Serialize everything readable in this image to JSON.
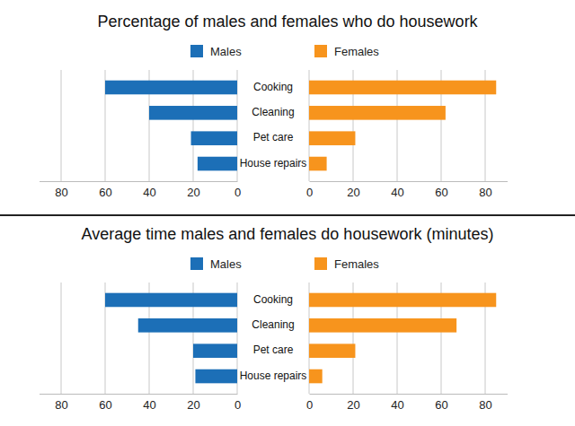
{
  "chart_data": [
    {
      "type": "bar",
      "orientation": "horizontal",
      "title": "Percentage of males and females who do housework",
      "categories": [
        "Cooking",
        "Cleaning",
        "Pet care",
        "House repairs"
      ],
      "series": [
        {
          "name": "Males",
          "color": "#1c6fb7",
          "values": [
            60,
            40,
            21,
            18
          ]
        },
        {
          "name": "Females",
          "color": "#f7941d",
          "values": [
            85,
            62,
            21,
            8
          ]
        }
      ],
      "xlim": [
        0,
        90
      ],
      "xticks": [
        0,
        20,
        40,
        60,
        80
      ],
      "grid": true,
      "legend": "top"
    },
    {
      "type": "bar",
      "orientation": "horizontal",
      "title": "Average time males and females do housework (minutes)",
      "categories": [
        "Cooking",
        "Cleaning",
        "Pet care",
        "House repairs"
      ],
      "series": [
        {
          "name": "Males",
          "color": "#1c6fb7",
          "values": [
            60,
            45,
            20,
            19
          ]
        },
        {
          "name": "Females",
          "color": "#f7941d",
          "values": [
            85,
            67,
            21,
            6
          ]
        }
      ],
      "xlim": [
        0,
        90
      ],
      "xticks": [
        0,
        20,
        40,
        60,
        80
      ],
      "grid": true,
      "legend": "top"
    }
  ]
}
